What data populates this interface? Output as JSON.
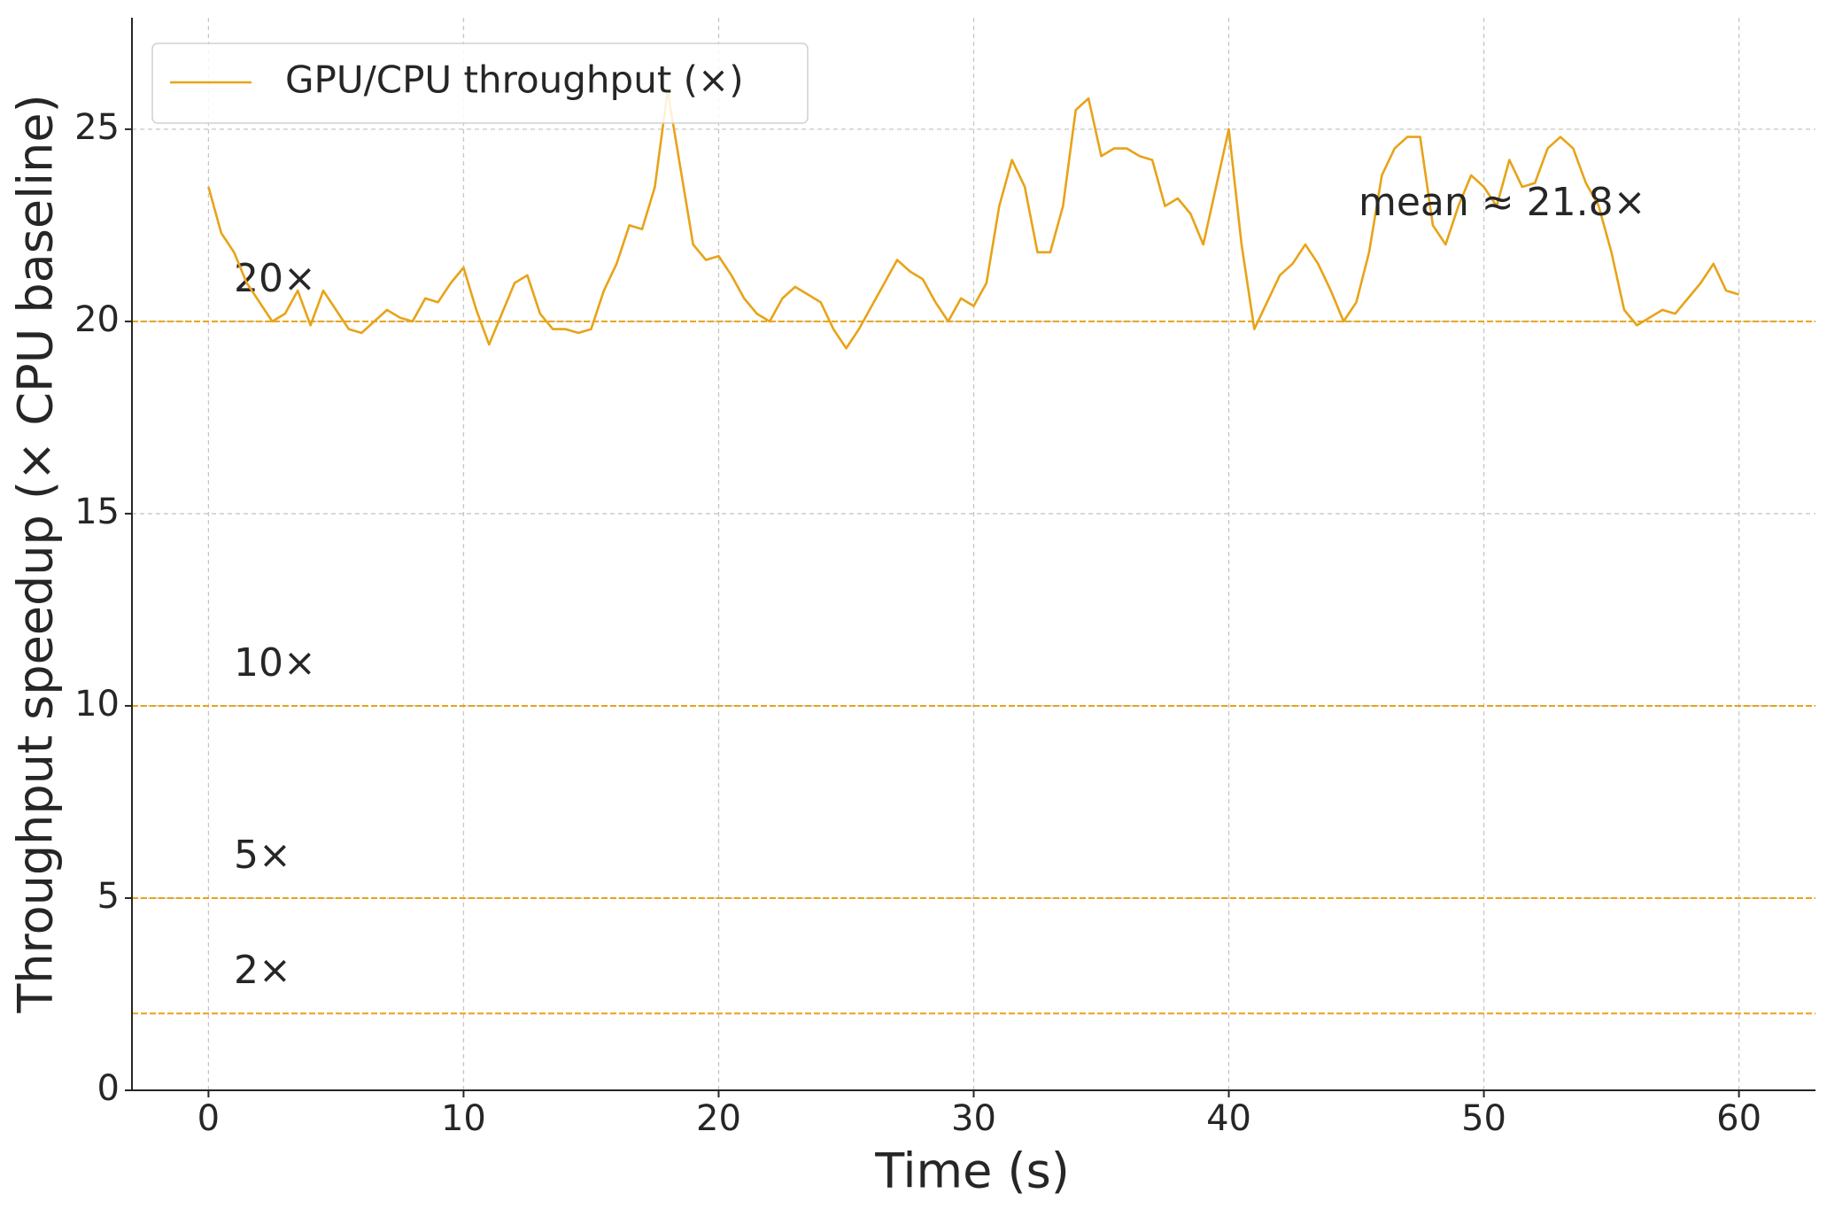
{
  "chart_data": {
    "type": "line",
    "xlabel": "Time (s)",
    "ylabel": "Throughput speedup (× CPU baseline)",
    "x": [
      0,
      0.5,
      1,
      1.5,
      2,
      2.5,
      3,
      3.5,
      4,
      4.5,
      5,
      5.5,
      6,
      6.5,
      7,
      7.5,
      8,
      8.5,
      9,
      9.5,
      10,
      10.5,
      11,
      11.5,
      12,
      12.5,
      13,
      13.5,
      14,
      14.5,
      15,
      15.5,
      16,
      16.5,
      17,
      17.5,
      18,
      18.5,
      19,
      19.5,
      20,
      20.5,
      21,
      21.5,
      22,
      22.5,
      23,
      23.5,
      24,
      24.5,
      25,
      25.5,
      26,
      26.5,
      27,
      27.5,
      28,
      28.5,
      29,
      29.5,
      30,
      30.5,
      31,
      31.5,
      32,
      32.5,
      33,
      33.5,
      34,
      34.5,
      35,
      35.5,
      36,
      36.5,
      37,
      37.5,
      38,
      38.5,
      39,
      39.5,
      40,
      40.5,
      41,
      41.5,
      42,
      42.5,
      43,
      43.5,
      44,
      44.5,
      45,
      45.5,
      46,
      46.5,
      47,
      47.5,
      48,
      48.5,
      49,
      49.5,
      50,
      50.5,
      51,
      51.5,
      52,
      52.5,
      53,
      53.5,
      54,
      54.5,
      55,
      55.5,
      56,
      56.5,
      57,
      57.5,
      58,
      58.5,
      59,
      59.5,
      60
    ],
    "series": [
      {
        "name": "GPU/CPU throughput (×)",
        "color": "#e8a317",
        "values": [
          23.5,
          22.3,
          21.8,
          21.0,
          20.5,
          20.0,
          20.2,
          20.8,
          19.9,
          20.8,
          20.3,
          19.8,
          19.7,
          20.0,
          20.3,
          20.1,
          20.0,
          20.6,
          20.5,
          21.0,
          21.4,
          20.3,
          19.4,
          20.2,
          21.0,
          21.2,
          20.2,
          19.8,
          19.8,
          19.7,
          19.8,
          20.8,
          21.5,
          22.5,
          22.4,
          23.5,
          26.0,
          24.0,
          22.0,
          21.6,
          21.7,
          21.2,
          20.6,
          20.2,
          20.0,
          20.6,
          20.9,
          20.7,
          20.5,
          19.8,
          19.3,
          19.8,
          20.4,
          21.0,
          21.6,
          21.3,
          21.1,
          20.5,
          20.0,
          20.6,
          20.4,
          21.0,
          23.0,
          24.2,
          23.5,
          21.8,
          21.8,
          23.0,
          25.5,
          25.8,
          24.3,
          24.5,
          24.5,
          24.3,
          24.2,
          23.0,
          23.2,
          22.8,
          22.0,
          23.5,
          25.0,
          22.0,
          19.8,
          20.5,
          21.2,
          21.5,
          22.0,
          21.5,
          20.8,
          20.0,
          20.5,
          21.8,
          23.8,
          24.5,
          24.8,
          24.8,
          22.5,
          22.0,
          23.0,
          23.8,
          23.5,
          23.0,
          24.2,
          23.5,
          23.6,
          24.5,
          24.8,
          24.5,
          23.6,
          23.0,
          21.8,
          20.3,
          19.9,
          20.1,
          20.3,
          20.2,
          20.6,
          21.0,
          21.5,
          20.8,
          20.7
        ]
      }
    ],
    "reference_lines": [
      {
        "value": 20,
        "label": "20×"
      },
      {
        "value": 10,
        "label": "10×"
      },
      {
        "value": 5,
        "label": "5×"
      },
      {
        "value": 2,
        "label": "2×"
      }
    ],
    "annotation": "mean ≈ 21.8×",
    "xlim": [
      -3,
      63
    ],
    "ylim": [
      0,
      27.9
    ],
    "xticks": [
      0,
      10,
      20,
      30,
      40,
      50,
      60
    ],
    "yticks": [
      0,
      5,
      10,
      15,
      20,
      25
    ],
    "grid": true,
    "legend": "upper left"
  }
}
